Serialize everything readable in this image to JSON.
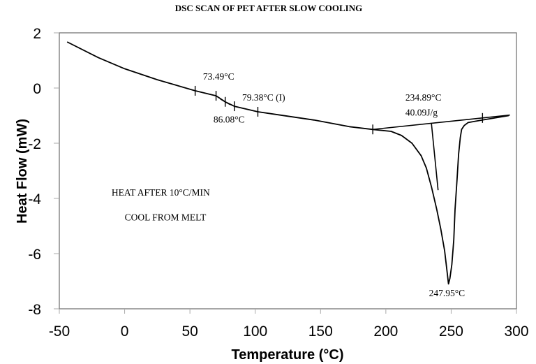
{
  "chart_data": {
    "type": "line",
    "title": "DSC SCAN OF PET AFTER SLOW COOLING",
    "xlabel": "Temperature (°C)",
    "ylabel": "Heat Flow (mW)",
    "xlim": [
      -50,
      300
    ],
    "ylim": [
      -8,
      2
    ],
    "xticks": [
      "-50",
      "0",
      "50",
      "100",
      "150",
      "200",
      "250",
      "300"
    ],
    "yticks": [
      "2",
      "0",
      "-2",
      "-4",
      "-6",
      "-8"
    ],
    "grid": false,
    "series": [
      {
        "x": [
          -44,
          -20,
          0,
          25,
          54,
          70,
          77,
          84,
          102,
          125,
          145,
          172,
          190,
          204,
          212,
          220,
          227,
          231,
          235,
          239,
          242,
          245,
          247,
          247.95,
          249,
          250.5,
          252,
          253,
          254.5,
          255.7,
          257,
          258,
          260,
          263,
          274,
          294
        ],
        "y": [
          1.67,
          1.1,
          0.7,
          0.3,
          -0.1,
          -0.28,
          -0.5,
          -0.66,
          -0.86,
          -1.02,
          -1.16,
          -1.4,
          -1.5,
          -1.57,
          -1.72,
          -2.0,
          -2.45,
          -2.9,
          -3.6,
          -4.4,
          -5.1,
          -5.9,
          -6.7,
          -7.1,
          -6.9,
          -6.4,
          -5.5,
          -4.4,
          -3.3,
          -2.4,
          -1.8,
          -1.5,
          -1.36,
          -1.25,
          -1.16,
          -1.0
        ]
      }
    ],
    "baseline": {
      "x": [
        190,
        295
      ],
      "y": [
        -1.5,
        -0.98
      ]
    },
    "onset_line": {
      "x": [
        234.89,
        240
      ],
      "y": [
        -1.28,
        -3.7
      ]
    },
    "tick_marks_x": [
      54,
      70,
      77,
      84,
      102,
      190,
      274
    ],
    "annotations": [
      {
        "text": "73.49°C",
        "x": 60,
        "y": 0.3
      },
      {
        "text": "79.38°C (I)",
        "x": 90,
        "y": -0.45
      },
      {
        "text": "86.08°C",
        "x": 68,
        "y": -1.25
      },
      {
        "text": "234.89°C",
        "x": 215,
        "y": -0.45
      },
      {
        "text": "40.09J/g",
        "x": 215,
        "y": -1.0
      },
      {
        "text": "247.95°C",
        "x": 233,
        "y": -7.55
      },
      {
        "text": "HEAT AFTER 10°C/MIN",
        "x": -10,
        "y": -3.9
      },
      {
        "text": "COOL FROM MELT",
        "x": 0,
        "y": -4.8
      }
    ]
  }
}
